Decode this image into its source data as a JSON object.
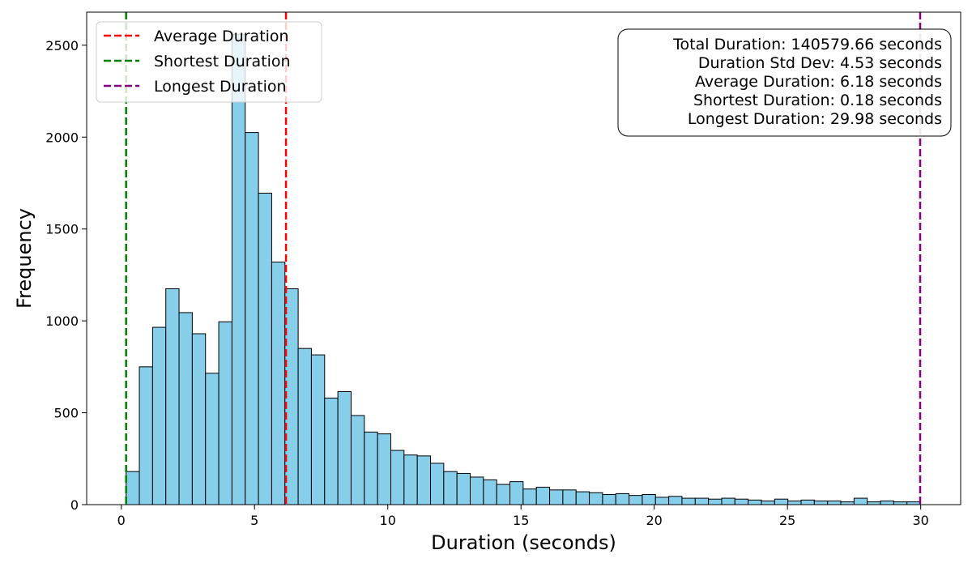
{
  "chart_data": {
    "type": "bar",
    "title": "",
    "xlabel": "Duration (seconds)",
    "ylabel": "Frequency",
    "xlim": [
      -1.3,
      31.5
    ],
    "ylim": [
      0,
      2680
    ],
    "xticks": [
      0,
      5,
      10,
      15,
      20,
      25,
      30
    ],
    "yticks": [
      0,
      500,
      1000,
      1500,
      2000,
      2500
    ],
    "bar_color": "#87CEEB",
    "bar_edge_color": "#000000",
    "bins": {
      "start": 0.18,
      "width": 0.4967,
      "values": [
        180,
        750,
        965,
        1175,
        1045,
        930,
        715,
        995,
        2560,
        2025,
        1695,
        1320,
        1175,
        850,
        815,
        580,
        615,
        485,
        395,
        385,
        295,
        270,
        265,
        225,
        180,
        170,
        150,
        135,
        110,
        125,
        85,
        95,
        80,
        80,
        70,
        65,
        55,
        60,
        50,
        55,
        40,
        45,
        35,
        35,
        30,
        35,
        30,
        25,
        20,
        30,
        20,
        25,
        20,
        20,
        15,
        35,
        15,
        20,
        15,
        15
      ]
    },
    "vlines": [
      {
        "label": "Average Duration",
        "x": 6.18,
        "color": "#FF0000"
      },
      {
        "label": "Shortest Duration",
        "x": 0.18,
        "color": "#008000"
      },
      {
        "label": "Longest Duration",
        "x": 29.98,
        "color": "#800080"
      }
    ],
    "legend": {
      "position": "top-left",
      "entries": [
        "Average Duration",
        "Shortest Duration",
        "Longest Duration"
      ]
    },
    "stats_box": {
      "position": "top-right",
      "lines": [
        "Total Duration: 140579.66 seconds",
        "Duration Std Dev: 4.53 seconds",
        "Average Duration: 6.18 seconds",
        "Shortest Duration: 0.18 seconds",
        "Longest Duration: 29.98 seconds"
      ]
    }
  }
}
